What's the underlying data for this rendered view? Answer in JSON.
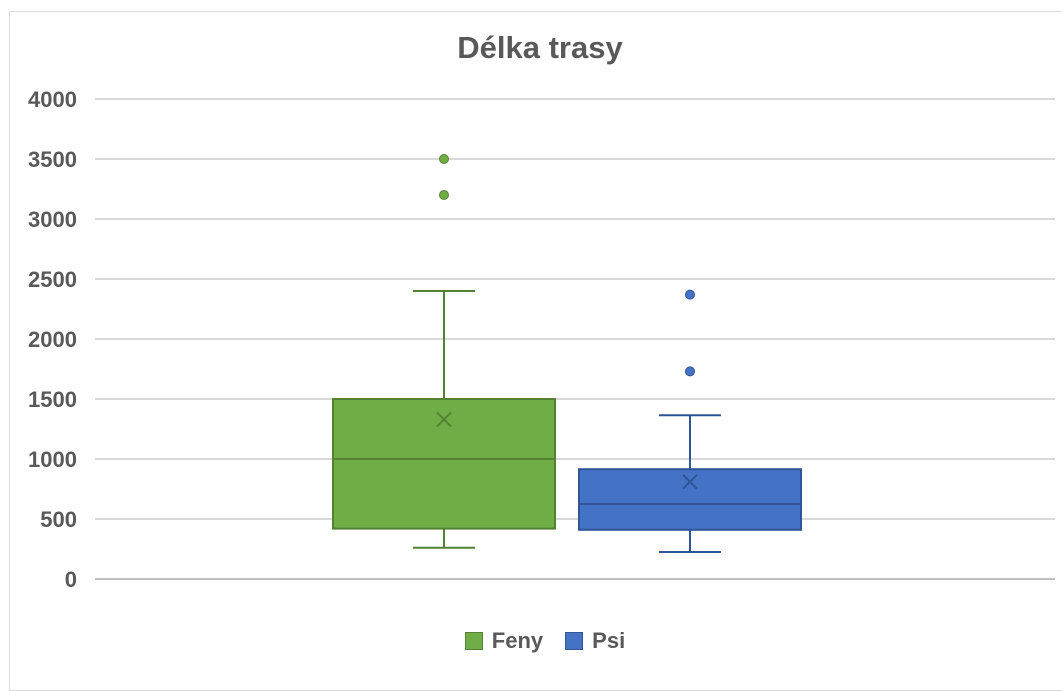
{
  "chart_data": {
    "type": "box",
    "title": "Délka trasy",
    "xlabel": "",
    "ylabel": "",
    "ylim": [
      0,
      4000
    ],
    "yticks": [
      0,
      500,
      1000,
      1500,
      2000,
      2500,
      3000,
      3500,
      4000
    ],
    "grid": true,
    "legend_position": "bottom",
    "series": [
      {
        "name": "Feny",
        "color": "#70ad47",
        "stroke": "#548235",
        "whisker_low": 260,
        "q1": 420,
        "median": 1000,
        "q3": 1500,
        "whisker_high": 2400,
        "mean": 1330,
        "outliers": [
          3200,
          3500
        ]
      },
      {
        "name": "Psi",
        "color": "#4472c4",
        "stroke": "#2f5597",
        "whisker_low": 225,
        "q1": 410,
        "median": 625,
        "q3": 915,
        "whisker_high": 1365,
        "mean": 810,
        "outliers": [
          1730,
          2370
        ]
      }
    ]
  }
}
